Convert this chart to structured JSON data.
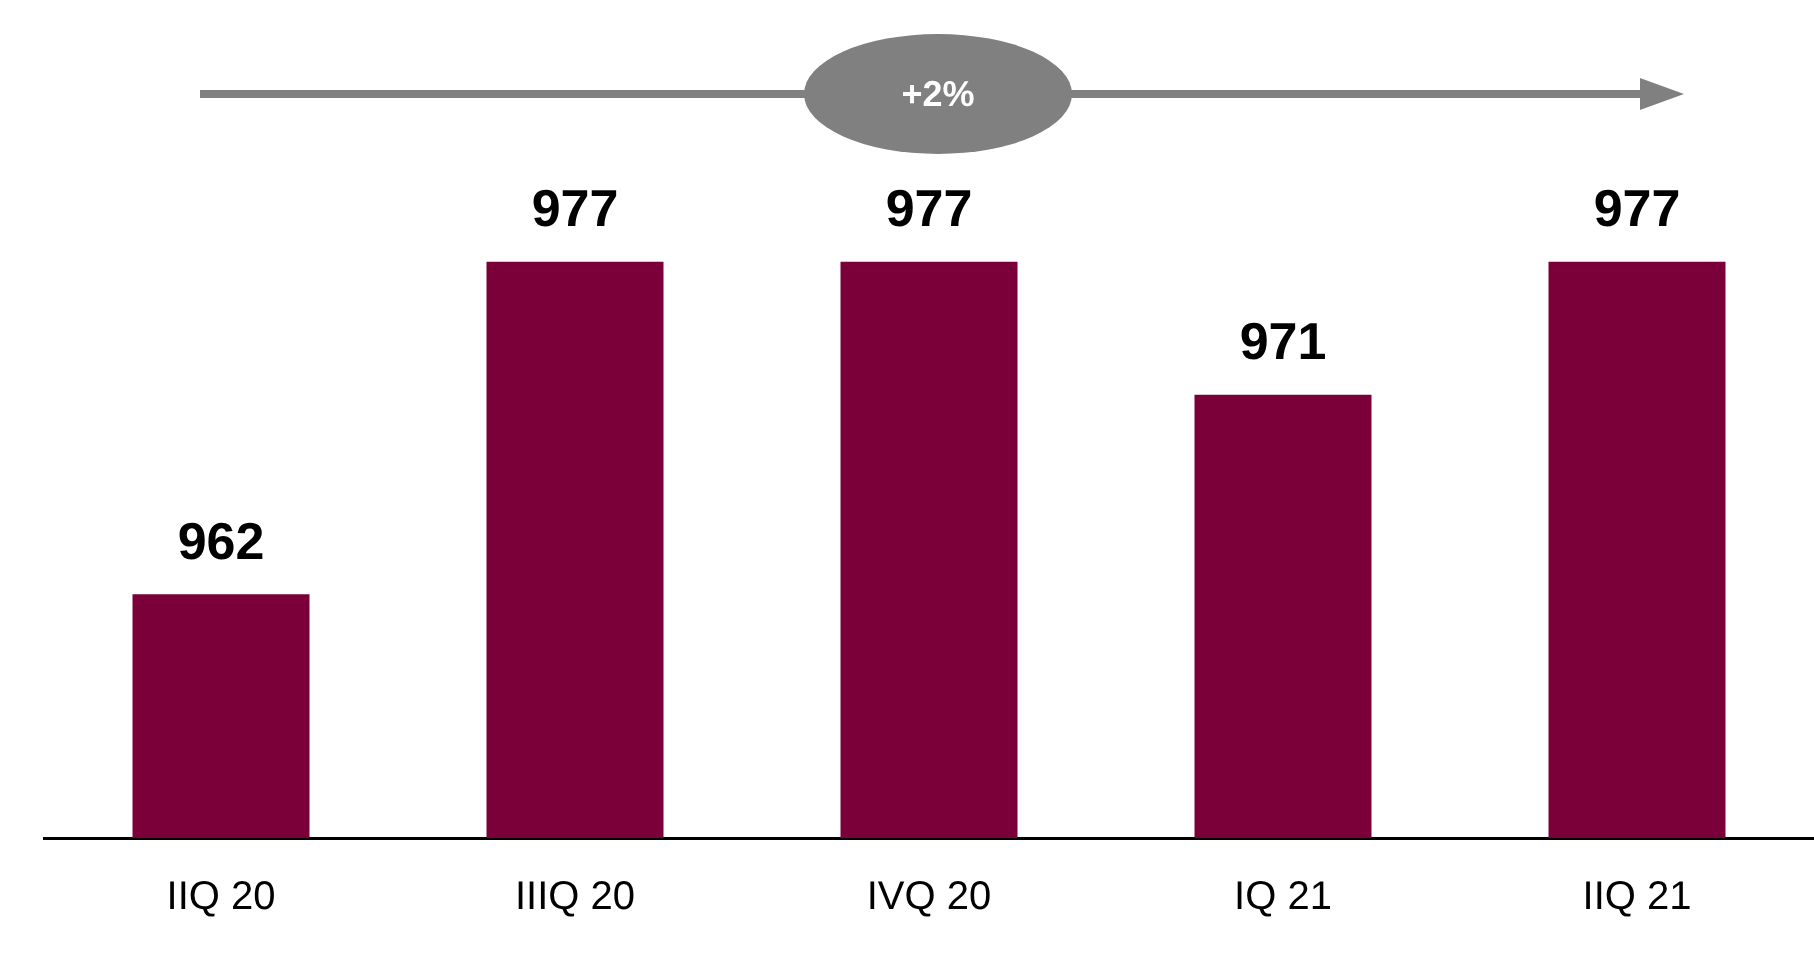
{
  "chart_data": {
    "type": "bar",
    "categories": [
      "IIQ 20",
      "IIIQ 20",
      "IVQ 20",
      "IQ 21",
      "IIQ 21"
    ],
    "values": [
      962,
      977,
      977,
      971,
      977
    ],
    "color": "#7b003a",
    "ylim": [
      951,
      987
    ],
    "data_labels": true,
    "tick_labels": "x",
    "grid": false,
    "legend": false,
    "annotations": [
      "+2%"
    ]
  }
}
